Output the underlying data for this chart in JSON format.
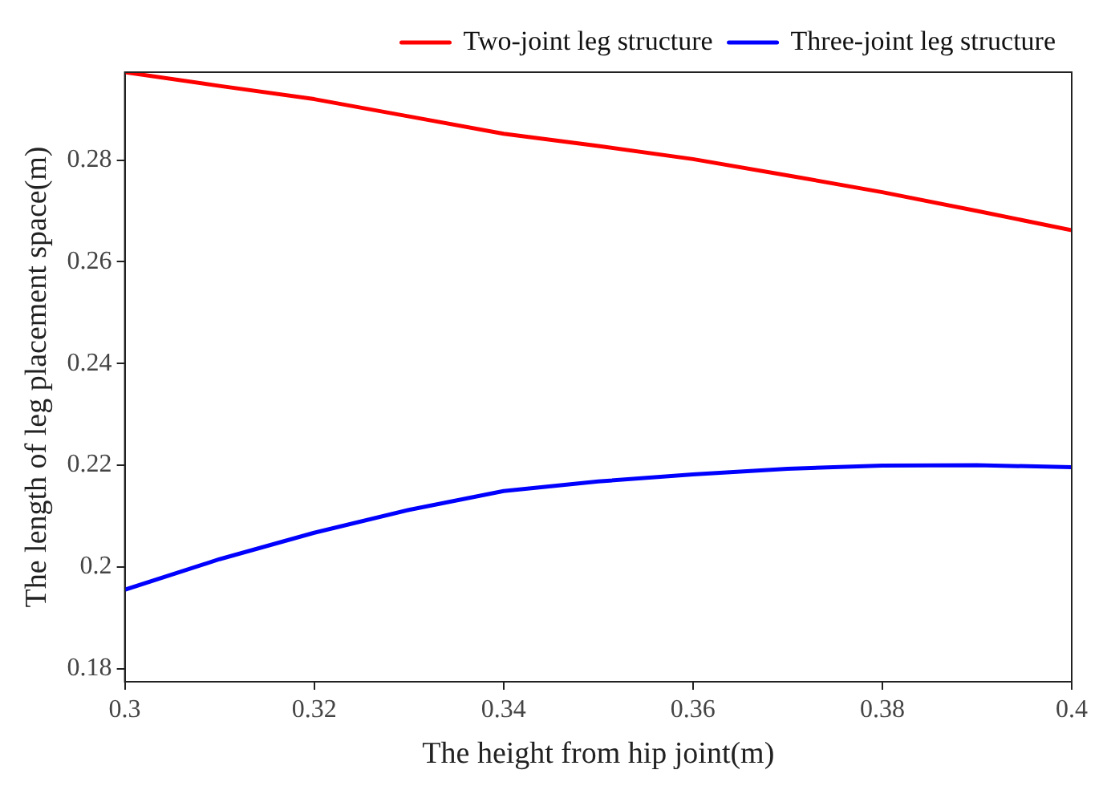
{
  "chart_data": {
    "type": "line",
    "xlabel": "The height from hip joint(m)",
    "ylabel": "The length of leg placement space(m)",
    "x": [
      0.3,
      0.31,
      0.32,
      0.33,
      0.34,
      0.35,
      0.36,
      0.37,
      0.38,
      0.39,
      0.4
    ],
    "series": [
      {
        "name": "Two-joint leg structure",
        "color": "#ff0000",
        "values": [
          0.2973,
          0.2946,
          0.292,
          0.2886,
          0.2852,
          0.2828,
          0.2802,
          0.277,
          0.2737,
          0.27,
          0.2662
        ]
      },
      {
        "name": "Three-joint leg structure",
        "color": "#0000ff",
        "values": [
          0.1955,
          0.2015,
          0.2067,
          0.2112,
          0.2149,
          0.2168,
          0.2182,
          0.2193,
          0.2199,
          0.22,
          0.2196
        ]
      }
    ],
    "xlim": [
      0.3,
      0.4
    ],
    "xticks": [
      0.3,
      0.32,
      0.34,
      0.36,
      0.38,
      0.4
    ],
    "ylim": [
      0.1774,
      0.2973
    ],
    "yticks": [
      0.18,
      0.2,
      0.22,
      0.24,
      0.26,
      0.28
    ],
    "grid": false,
    "legend": "top right",
    "marker": "none",
    "line_style": "solid"
  }
}
